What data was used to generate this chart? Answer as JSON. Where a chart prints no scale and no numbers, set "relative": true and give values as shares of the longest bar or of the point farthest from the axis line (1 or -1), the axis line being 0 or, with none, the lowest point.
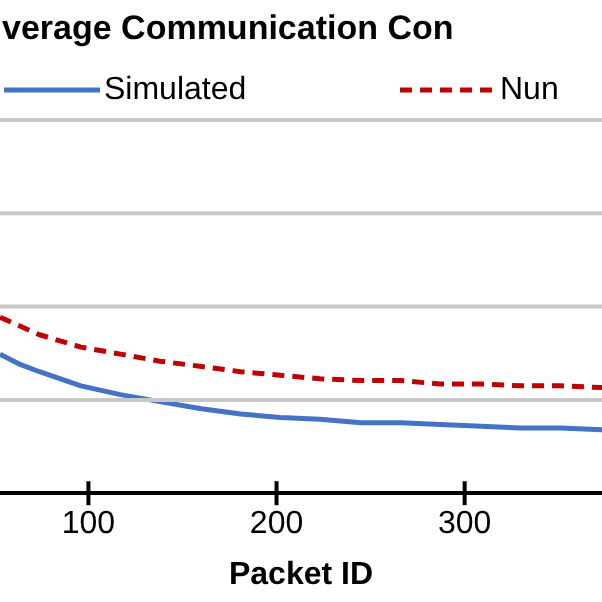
{
  "chart_data": {
    "type": "line",
    "title": "verage Communication Con",
    "xlabel": "Packet ID",
    "relative": true,
    "xlim": [
      53,
      373
    ],
    "xticks": [
      100,
      200,
      300
    ],
    "ref_lines": [
      {
        "axis": "y",
        "value": 0.53,
        "color": "#c8c8c8"
      },
      {
        "axis": "y",
        "value": 1.06,
        "color": "#c8c8c8"
      },
      {
        "axis": "y",
        "value": 1.59,
        "color": "#c8c8c8"
      },
      {
        "axis": "y",
        "value": 2.12,
        "color": "#c8c8c8"
      }
    ],
    "legend": "top",
    "marker": "none",
    "series": [
      {
        "name": "Simulated",
        "color": "#4472c4",
        "line_style": "solid",
        "x": [
          53,
          64,
          74,
          96,
          117,
          138,
          160,
          181,
          202,
          223,
          245,
          266,
          287,
          309,
          330,
          351,
          373
        ],
        "values": [
          0.79,
          0.73,
          0.69,
          0.61,
          0.56,
          0.52,
          0.48,
          0.45,
          0.43,
          0.42,
          0.4,
          0.4,
          0.39,
          0.38,
          0.37,
          0.37,
          0.36
        ]
      },
      {
        "name": "Nun",
        "color": "#c00000",
        "line_style": "dashed",
        "x": [
          53,
          74,
          96,
          117,
          138,
          160,
          181,
          202,
          223,
          245,
          266,
          287,
          309,
          330,
          351,
          373
        ],
        "values": [
          1.0,
          0.9,
          0.83,
          0.79,
          0.75,
          0.72,
          0.69,
          0.67,
          0.65,
          0.64,
          0.64,
          0.62,
          0.62,
          0.61,
          0.61,
          0.6
        ]
      }
    ]
  }
}
